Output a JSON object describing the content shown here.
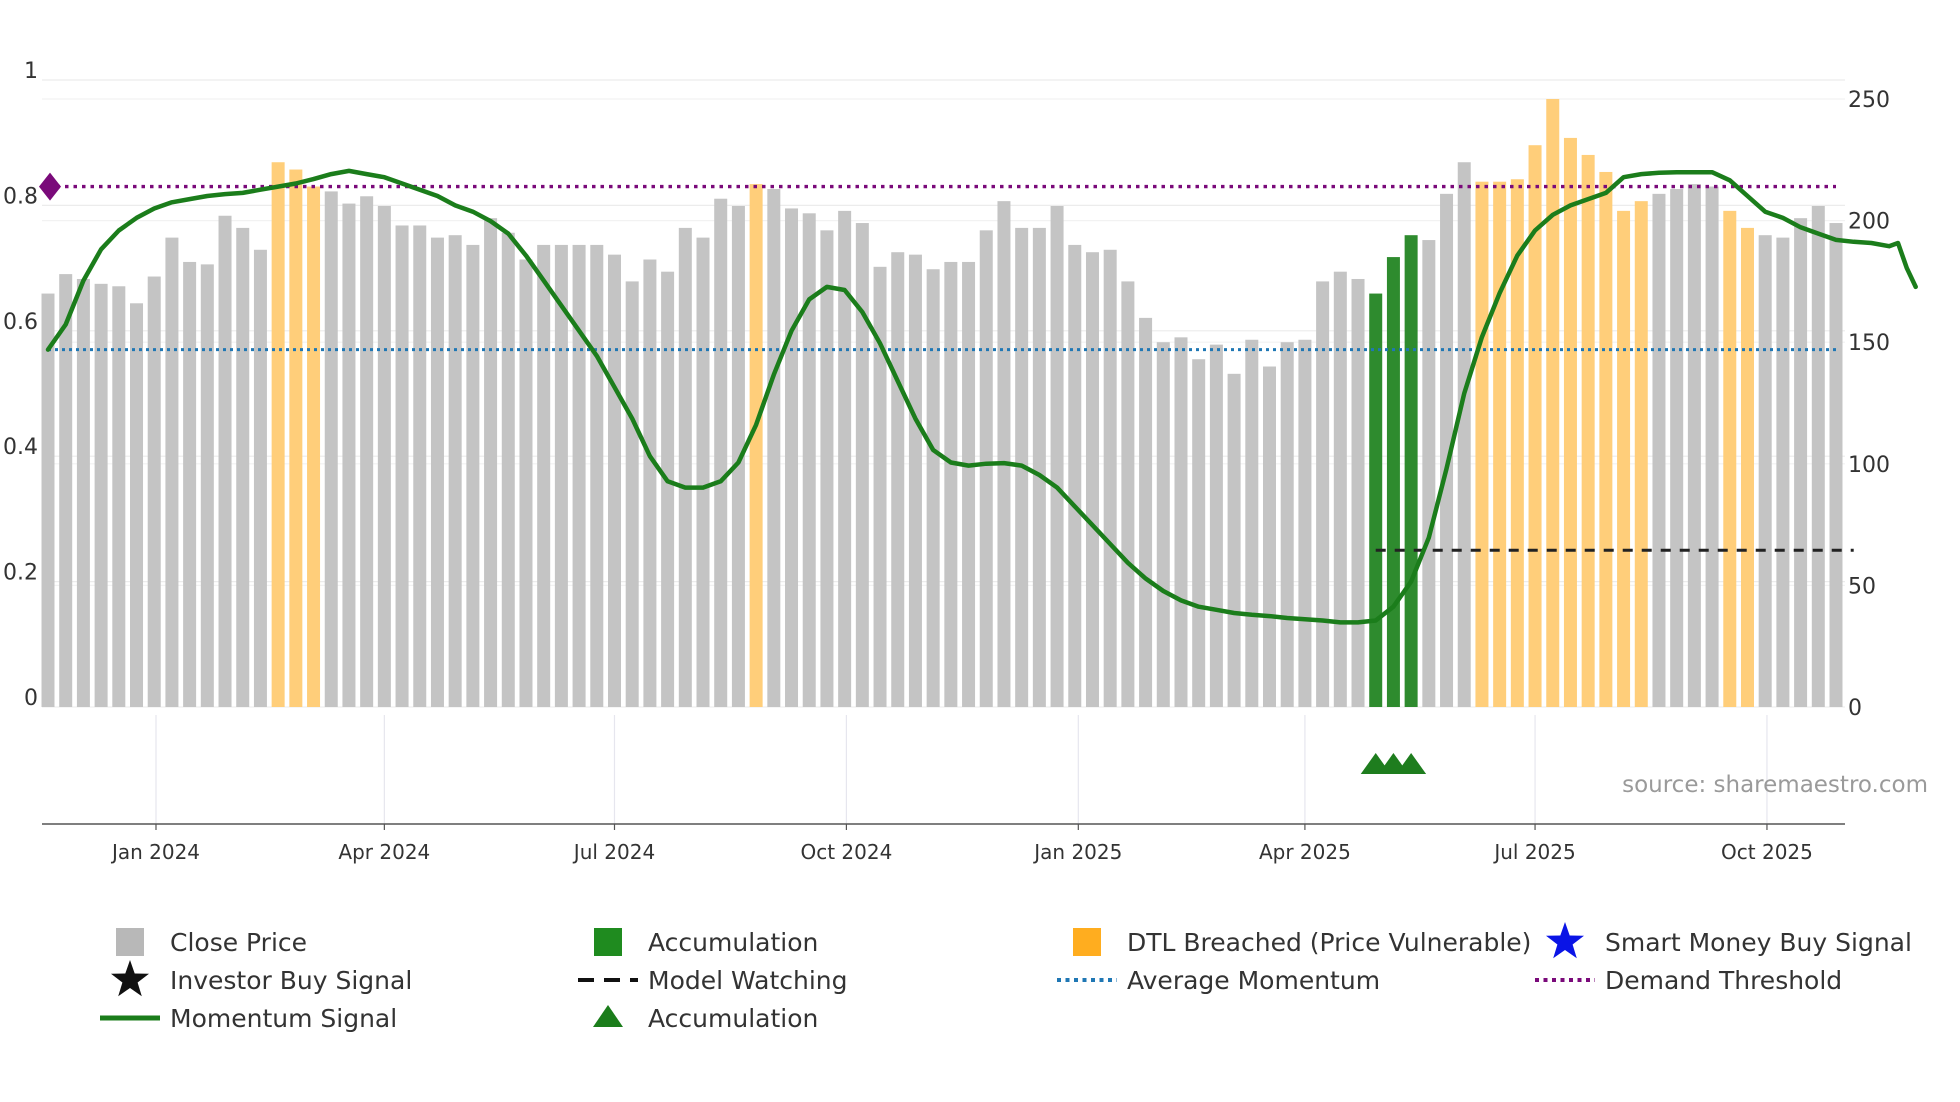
{
  "chart_data": {
    "type": "bar",
    "title": "",
    "left_axis": {
      "ticks": [
        0,
        0.2,
        0.4,
        0.6,
        0.8,
        1
      ],
      "tick_labels": [
        "0",
        "0.2",
        "0.4",
        "0.6",
        "0.8",
        "1"
      ],
      "range": [
        0,
        1
      ]
    },
    "right_axis": {
      "ticks": [
        0,
        50,
        100,
        150,
        200,
        250
      ],
      "tick_labels": [
        "0",
        "50",
        "100",
        "150",
        "200",
        "250"
      ],
      "range": [
        0,
        250
      ]
    },
    "x_axis": {
      "start_week": 0,
      "end_week": 98,
      "ticks": [
        {
          "label": "Jan 2024",
          "week": 6.1
        },
        {
          "label": "Apr 2024",
          "week": 19.0
        },
        {
          "label": "Jul 2024",
          "week": 32.0
        },
        {
          "label": "Oct 2024",
          "week": 45.1
        },
        {
          "label": "Jan 2025",
          "week": 58.2
        },
        {
          "label": "Apr 2025",
          "week": 71.0
        },
        {
          "label": "Jul 2025",
          "week": 84.0
        },
        {
          "label": "Oct 2025",
          "week": 97.1
        }
      ]
    },
    "colors": {
      "close": "#c4c4c4",
      "accumulation": "#2e8b2e",
      "dtl_breached": "#ffce7a",
      "momentum": "#1b7d1b",
      "average_momentum": "#1f77b4",
      "demand_threshold": "#7a0a7a",
      "model_watching": "#222222",
      "marker": "#1e7d1e",
      "diamond": "#7a0a7a"
    },
    "bar_state_codes": "g=close price, a=accumulation, o=DTL breached",
    "close_price": [
      170,
      178,
      176,
      174,
      173,
      166,
      177,
      193,
      183,
      182,
      202,
      197,
      188,
      224,
      221,
      214,
      212,
      207,
      210,
      206,
      198,
      198,
      193,
      194,
      190,
      201,
      195,
      184,
      190,
      190,
      190,
      190,
      186,
      175,
      184,
      179,
      197,
      193,
      209,
      206,
      215,
      213,
      205,
      203,
      196,
      204,
      199,
      181,
      187,
      186,
      180,
      183,
      183,
      196,
      208,
      197,
      197,
      206,
      190,
      187,
      188,
      175,
      160,
      150,
      152,
      143,
      149,
      137,
      151,
      140,
      150,
      151,
      175,
      179,
      176,
      170,
      185,
      194,
      192,
      211,
      224,
      216,
      216,
      217,
      231,
      250,
      234,
      227,
      220,
      204,
      208,
      211,
      213,
      215,
      214,
      204,
      197,
      194,
      193,
      201,
      206,
      199
    ],
    "bar_state": [
      "g",
      "g",
      "g",
      "g",
      "g",
      "g",
      "g",
      "g",
      "g",
      "g",
      "g",
      "g",
      "g",
      "o",
      "o",
      "o",
      "g",
      "g",
      "g",
      "g",
      "g",
      "g",
      "g",
      "g",
      "g",
      "g",
      "g",
      "g",
      "g",
      "g",
      "g",
      "g",
      "g",
      "g",
      "g",
      "g",
      "g",
      "g",
      "g",
      "g",
      "o",
      "g",
      "g",
      "g",
      "g",
      "g",
      "g",
      "g",
      "g",
      "g",
      "g",
      "g",
      "g",
      "g",
      "g",
      "g",
      "g",
      "g",
      "g",
      "g",
      "g",
      "g",
      "g",
      "g",
      "g",
      "g",
      "g",
      "g",
      "g",
      "g",
      "g",
      "g",
      "g",
      "g",
      "g",
      "a",
      "a",
      "a",
      "g",
      "g",
      "g",
      "o",
      "o",
      "o",
      "o",
      "o",
      "o",
      "o",
      "o",
      "o",
      "o",
      "g",
      "g",
      "g",
      "g",
      "o",
      "o",
      "g",
      "g",
      "g",
      "g",
      "g"
    ],
    "momentum_signal": [
      [
        0,
        0.57
      ],
      [
        1,
        0.61
      ],
      [
        2,
        0.68
      ],
      [
        3,
        0.73
      ],
      [
        4,
        0.76
      ],
      [
        5,
        0.78
      ],
      [
        6,
        0.795
      ],
      [
        7,
        0.805
      ],
      [
        8,
        0.81
      ],
      [
        9,
        0.815
      ],
      [
        10,
        0.818
      ],
      [
        11,
        0.82
      ],
      [
        12,
        0.825
      ],
      [
        13,
        0.83
      ],
      [
        14,
        0.835
      ],
      [
        15,
        0.842
      ],
      [
        16,
        0.85
      ],
      [
        17,
        0.855
      ],
      [
        18,
        0.85
      ],
      [
        19,
        0.845
      ],
      [
        20,
        0.835
      ],
      [
        21,
        0.825
      ],
      [
        22,
        0.815
      ],
      [
        23,
        0.8
      ],
      [
        24,
        0.79
      ],
      [
        25,
        0.775
      ],
      [
        26,
        0.755
      ],
      [
        27,
        0.72
      ],
      [
        28,
        0.68
      ],
      [
        29,
        0.64
      ],
      [
        30,
        0.6
      ],
      [
        31,
        0.56
      ],
      [
        32,
        0.51
      ],
      [
        33,
        0.46
      ],
      [
        34,
        0.4
      ],
      [
        35,
        0.36
      ],
      [
        36,
        0.35
      ],
      [
        37,
        0.35
      ],
      [
        38,
        0.36
      ],
      [
        39,
        0.39
      ],
      [
        40,
        0.45
      ],
      [
        41,
        0.53
      ],
      [
        42,
        0.6
      ],
      [
        43,
        0.65
      ],
      [
        44,
        0.67
      ],
      [
        45,
        0.665
      ],
      [
        46,
        0.63
      ],
      [
        47,
        0.58
      ],
      [
        48,
        0.52
      ],
      [
        49,
        0.46
      ],
      [
        50,
        0.41
      ],
      [
        51,
        0.39
      ],
      [
        52,
        0.385
      ],
      [
        53,
        0.388
      ],
      [
        54,
        0.389
      ],
      [
        55,
        0.385
      ],
      [
        56,
        0.37
      ],
      [
        57,
        0.35
      ],
      [
        58,
        0.32
      ],
      [
        59,
        0.29
      ],
      [
        60,
        0.26
      ],
      [
        61,
        0.23
      ],
      [
        62,
        0.205
      ],
      [
        63,
        0.185
      ],
      [
        64,
        0.17
      ],
      [
        65,
        0.16
      ],
      [
        66,
        0.155
      ],
      [
        67,
        0.15
      ],
      [
        68,
        0.147
      ],
      [
        69,
        0.145
      ],
      [
        70,
        0.142
      ],
      [
        71,
        0.14
      ],
      [
        72,
        0.138
      ],
      [
        73,
        0.135
      ],
      [
        74,
        0.135
      ],
      [
        75,
        0.138
      ],
      [
        76,
        0.16
      ],
      [
        77,
        0.2
      ],
      [
        78,
        0.27
      ],
      [
        79,
        0.38
      ],
      [
        80,
        0.5
      ],
      [
        81,
        0.59
      ],
      [
        82,
        0.66
      ],
      [
        83,
        0.72
      ],
      [
        84,
        0.76
      ],
      [
        85,
        0.785
      ],
      [
        86,
        0.8
      ],
      [
        87,
        0.81
      ],
      [
        88,
        0.82
      ],
      [
        89,
        0.845
      ],
      [
        90,
        0.85
      ],
      [
        91,
        0.852
      ],
      [
        92,
        0.853
      ],
      [
        93,
        0.853
      ],
      [
        94,
        0.853
      ],
      [
        95,
        0.84
      ],
      [
        96,
        0.815
      ],
      [
        97,
        0.79
      ],
      [
        98,
        0.78
      ],
      [
        99,
        0.765
      ],
      [
        100,
        0.755
      ],
      [
        101,
        0.745
      ],
      [
        102,
        0.742
      ],
      [
        103,
        0.74
      ],
      [
        104,
        0.735
      ],
      [
        104.5,
        0.74
      ],
      [
        105,
        0.7
      ],
      [
        105.5,
        0.67
      ]
    ],
    "average_momentum": 0.57,
    "demand_threshold": 0.83,
    "model_watching": {
      "level": 0.25,
      "from_week": 75,
      "to_week": 102
    },
    "accumulation_markers": [
      75,
      76,
      77
    ],
    "diamond_marker": {
      "week": 0,
      "value": 0.83
    },
    "annotations": [
      "source: sharemaestro.com"
    ]
  },
  "source_text": "source: sharemaestro.com",
  "legend": {
    "items": [
      {
        "label": "Close Price",
        "symbol": "square",
        "color": "#b8b8b8"
      },
      {
        "label": "Accumulation",
        "symbol": "square",
        "color": "#1f8b1f"
      },
      {
        "label": "DTL Breached (Price Vulnerable)",
        "symbol": "square",
        "color": "#ffad1f"
      },
      {
        "label": "Smart Money Buy Signal",
        "symbol": "star",
        "color": "#0a14e6"
      },
      {
        "label": "Investor Buy Signal",
        "symbol": "star",
        "color": "#111111"
      },
      {
        "label": "Model Watching",
        "symbol": "dash",
        "color": "#111111"
      },
      {
        "label": "Average Momentum",
        "symbol": "dot",
        "color": "#1f77b4"
      },
      {
        "label": "Demand Threshold",
        "symbol": "dot",
        "color": "#7a0a7a"
      },
      {
        "label": "Momentum Signal",
        "symbol": "line",
        "color": "#1b7d1b"
      },
      {
        "label": "Accumulation",
        "symbol": "triangle",
        "color": "#1b7d1b"
      }
    ]
  }
}
